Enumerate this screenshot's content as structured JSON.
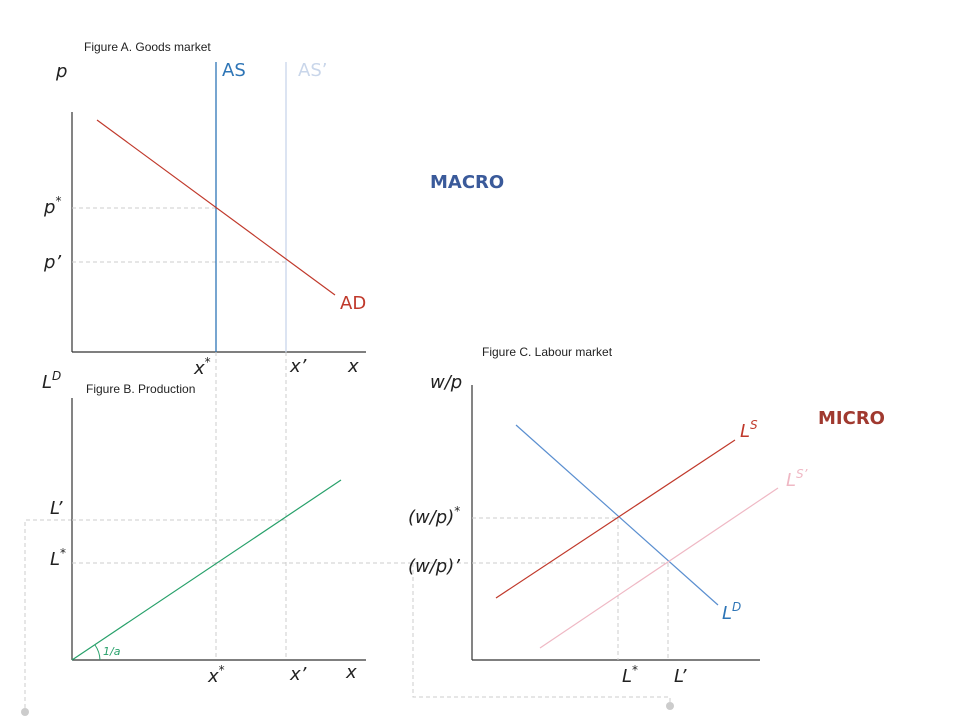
{
  "figure_a": {
    "title": "Figure A. Goods market",
    "labels": [
      {
        "base": "p"
      },
      {
        "base": "AS"
      },
      {
        "base": "AS’"
      },
      {
        "base": "p",
        "sup": "*"
      },
      {
        "base": "p’"
      },
      {
        "base": "AD"
      },
      {
        "base": "x",
        "sup": "*"
      },
      {
        "base": "x’"
      },
      {
        "base": "x"
      }
    ]
  },
  "macro": "MACRO",
  "figure_b": {
    "title": "Figure B. Production",
    "labels": [
      {
        "base": "L",
        "sup": "D"
      },
      {
        "base": "L’"
      },
      {
        "base": "L",
        "sup": "*"
      },
      {
        "base": "1/a"
      },
      {
        "base": "x",
        "sup": "*"
      },
      {
        "base": "x’"
      },
      {
        "base": "x"
      }
    ]
  },
  "figure_c": {
    "title": "Figure C. Labour market",
    "labels": [
      {
        "base": "w/p"
      },
      {
        "base": "L",
        "sup": "S"
      },
      {
        "base": "L",
        "sup": "S’"
      },
      {
        "base": "(w/p)",
        "sup": "*"
      },
      {
        "base": "(w/p)’"
      },
      {
        "base": "L",
        "sup": "D"
      },
      {
        "base": "L",
        "sup": "*"
      },
      {
        "base": "L’"
      }
    ]
  },
  "micro": "MICRO"
}
